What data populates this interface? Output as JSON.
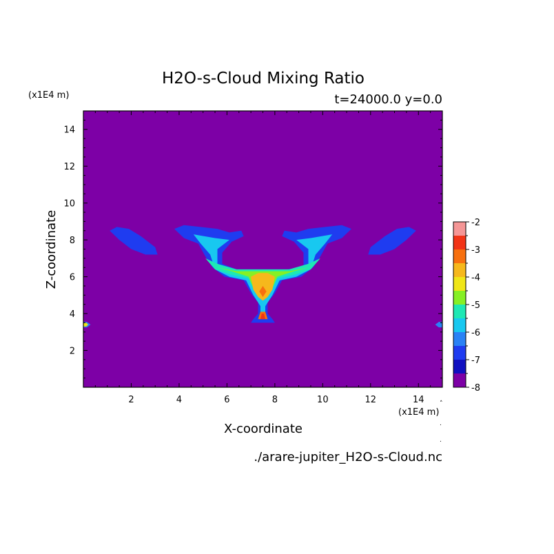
{
  "chart_data": {
    "type": "heatmap",
    "title": "H2O-s-Cloud Mixing Ratio",
    "subtitle": "t=24000.0 y=0.0",
    "xlabel": "X-coordinate",
    "ylabel": "Z-coordinate",
    "x_unit": "(x1E4 m)",
    "y_unit": "(x1E4 m)",
    "source_file": "./arare-jupiter_H2O-s-Cloud.nc",
    "xlim": [
      0,
      15
    ],
    "ylim": [
      0,
      15
    ],
    "x_ticks": [
      2,
      4,
      6,
      8,
      10,
      12,
      14
    ],
    "x_tick_labels": [
      "2",
      "4",
      "6",
      "8",
      "10",
      "12",
      "14"
    ],
    "y_ticks": [
      2,
      4,
      6,
      8,
      10,
      12,
      14
    ],
    "y_tick_labels": [
      "2",
      "4",
      "6",
      "8",
      "10",
      "12",
      "14"
    ],
    "background_level": -8,
    "colorbar": {
      "levels": [
        -8,
        -7.5,
        -7,
        -6.5,
        -6,
        -5.5,
        -5,
        -4.5,
        -4,
        -3.5,
        -3,
        -2.5,
        -2
      ],
      "tick_labels": [
        "-2",
        "-3",
        "-4",
        "-5",
        "-6",
        "-7",
        "-8"
      ],
      "tick_values": [
        -2,
        -3,
        -4,
        -5,
        -6,
        -7,
        -8
      ],
      "colors": [
        "#7d00a6",
        "#1010c0",
        "#1f3cf0",
        "#2a82f5",
        "#18c8f0",
        "#1ee8b4",
        "#86f025",
        "#f0e617",
        "#f6b81c",
        "#f7700f",
        "#f23417",
        "#f59696"
      ]
    },
    "regions": [
      {
        "level": -7,
        "polygon": [
          [
            1.1,
            8.5
          ],
          [
            1.4,
            8.7
          ],
          [
            1.9,
            8.6
          ],
          [
            2.4,
            8.2
          ],
          [
            3.0,
            7.6
          ],
          [
            3.1,
            7.2
          ],
          [
            2.6,
            7.2
          ],
          [
            2.0,
            7.5
          ],
          [
            1.5,
            8.0
          ]
        ]
      },
      {
        "level": -7,
        "polygon": [
          [
            13.9,
            8.5
          ],
          [
            13.6,
            8.7
          ],
          [
            13.1,
            8.6
          ],
          [
            12.6,
            8.2
          ],
          [
            12.0,
            7.6
          ],
          [
            11.9,
            7.2
          ],
          [
            12.4,
            7.2
          ],
          [
            13.0,
            7.5
          ],
          [
            13.5,
            8.0
          ]
        ]
      },
      {
        "level": -7,
        "polygon": [
          [
            3.8,
            8.6
          ],
          [
            4.2,
            8.8
          ],
          [
            4.9,
            8.7
          ],
          [
            5.6,
            8.6
          ],
          [
            6.1,
            8.4
          ],
          [
            6.6,
            8.5
          ],
          [
            6.7,
            8.2
          ],
          [
            6.2,
            7.9
          ],
          [
            5.8,
            7.3
          ],
          [
            5.8,
            6.7
          ],
          [
            6.4,
            6.4
          ],
          [
            8.5,
            6.4
          ],
          [
            9.2,
            6.5
          ],
          [
            9.2,
            7.3
          ],
          [
            8.8,
            7.9
          ],
          [
            8.3,
            8.2
          ],
          [
            8.4,
            8.5
          ],
          [
            8.9,
            8.4
          ],
          [
            9.4,
            8.6
          ],
          [
            10.1,
            8.7
          ],
          [
            10.8,
            8.8
          ],
          [
            11.2,
            8.6
          ],
          [
            10.8,
            8.1
          ],
          [
            10.2,
            7.8
          ],
          [
            9.9,
            7.1
          ],
          [
            9.6,
            6.5
          ],
          [
            9.1,
            6.0
          ],
          [
            8.3,
            5.8
          ],
          [
            8.0,
            5.1
          ],
          [
            7.7,
            4.6
          ],
          [
            7.7,
            4.0
          ],
          [
            7.9,
            3.7
          ],
          [
            8.0,
            3.5
          ],
          [
            7.0,
            3.5
          ],
          [
            7.1,
            3.7
          ],
          [
            7.3,
            4.0
          ],
          [
            7.3,
            4.6
          ],
          [
            7.0,
            5.1
          ],
          [
            6.7,
            5.8
          ],
          [
            5.9,
            6.0
          ],
          [
            5.4,
            6.5
          ],
          [
            5.1,
            7.1
          ],
          [
            4.8,
            7.8
          ],
          [
            4.2,
            8.1
          ]
        ]
      },
      {
        "level": -6,
        "polygon": [
          [
            4.6,
            8.3
          ],
          [
            5.5,
            8.1
          ],
          [
            6.1,
            8.0
          ],
          [
            5.6,
            7.5
          ],
          [
            5.6,
            6.7
          ],
          [
            6.4,
            6.3
          ],
          [
            8.6,
            6.3
          ],
          [
            9.4,
            6.6
          ],
          [
            9.4,
            7.5
          ],
          [
            8.9,
            8.0
          ],
          [
            9.5,
            8.1
          ],
          [
            10.4,
            8.3
          ],
          [
            10.1,
            7.8
          ],
          [
            9.7,
            7.2
          ],
          [
            9.5,
            6.4
          ],
          [
            8.9,
            6.0
          ],
          [
            8.2,
            5.8
          ],
          [
            7.9,
            5.0
          ],
          [
            7.6,
            4.4
          ],
          [
            7.6,
            3.9
          ],
          [
            7.4,
            3.9
          ],
          [
            7.4,
            4.4
          ],
          [
            7.1,
            5.0
          ],
          [
            6.8,
            5.8
          ],
          [
            6.1,
            6.0
          ],
          [
            5.5,
            6.4
          ],
          [
            5.3,
            7.2
          ],
          [
            4.9,
            7.8
          ]
        ]
      },
      {
        "level": -5.5,
        "polygon": [
          [
            5.1,
            7.0
          ],
          [
            5.5,
            6.4
          ],
          [
            6.2,
            6.1
          ],
          [
            6.9,
            5.9
          ],
          [
            7.1,
            5.3
          ],
          [
            7.4,
            5.0
          ],
          [
            7.6,
            5.0
          ],
          [
            7.9,
            5.3
          ],
          [
            8.1,
            5.9
          ],
          [
            8.8,
            6.1
          ],
          [
            9.5,
            6.4
          ],
          [
            9.9,
            7.0
          ],
          [
            9.4,
            6.7
          ],
          [
            8.6,
            6.4
          ],
          [
            6.4,
            6.4
          ],
          [
            5.6,
            6.7
          ]
        ]
      },
      {
        "level": -5,
        "polygon": [
          [
            5.6,
            6.5
          ],
          [
            6.2,
            6.3
          ],
          [
            6.9,
            6.0
          ],
          [
            7.1,
            5.4
          ],
          [
            7.5,
            5.1
          ],
          [
            7.9,
            5.4
          ],
          [
            8.1,
            6.0
          ],
          [
            8.8,
            6.3
          ],
          [
            9.4,
            6.5
          ],
          [
            8.6,
            6.3
          ],
          [
            6.4,
            6.3
          ]
        ]
      },
      {
        "level": -4,
        "polygon": [
          [
            7.0,
            6.0
          ],
          [
            7.1,
            5.3
          ],
          [
            7.3,
            4.9
          ],
          [
            7.5,
            4.7
          ],
          [
            7.7,
            4.9
          ],
          [
            7.9,
            5.3
          ],
          [
            8.0,
            6.0
          ],
          [
            7.7,
            6.2
          ],
          [
            7.3,
            6.2
          ]
        ]
      },
      {
        "level": -3.5,
        "polygon": [
          [
            7.35,
            5.2
          ],
          [
            7.5,
            5.5
          ],
          [
            7.65,
            5.2
          ],
          [
            7.5,
            4.9
          ]
        ]
      },
      {
        "level": -3.5,
        "polygon": [
          [
            7.3,
            3.7
          ],
          [
            7.4,
            4.1
          ],
          [
            7.6,
            4.1
          ],
          [
            7.7,
            3.7
          ]
        ]
      },
      {
        "level": -3,
        "polygon": [
          [
            7.4,
            3.7
          ],
          [
            7.45,
            4.0
          ],
          [
            7.55,
            4.0
          ],
          [
            7.6,
            3.7
          ]
        ]
      },
      {
        "level": -6.5,
        "polygon": [
          [
            0,
            3.25
          ],
          [
            0.15,
            3.25
          ],
          [
            0.3,
            3.4
          ],
          [
            0.15,
            3.55
          ],
          [
            0,
            3.55
          ]
        ]
      },
      {
        "level": -4.5,
        "polygon": [
          [
            0,
            3.3
          ],
          [
            0.12,
            3.3
          ],
          [
            0.2,
            3.4
          ],
          [
            0.12,
            3.5
          ],
          [
            0,
            3.5
          ]
        ]
      },
      {
        "level": -6.5,
        "polygon": [
          [
            15,
            3.25
          ],
          [
            14.85,
            3.25
          ],
          [
            14.7,
            3.4
          ],
          [
            14.85,
            3.55
          ],
          [
            15,
            3.55
          ]
        ]
      }
    ]
  }
}
